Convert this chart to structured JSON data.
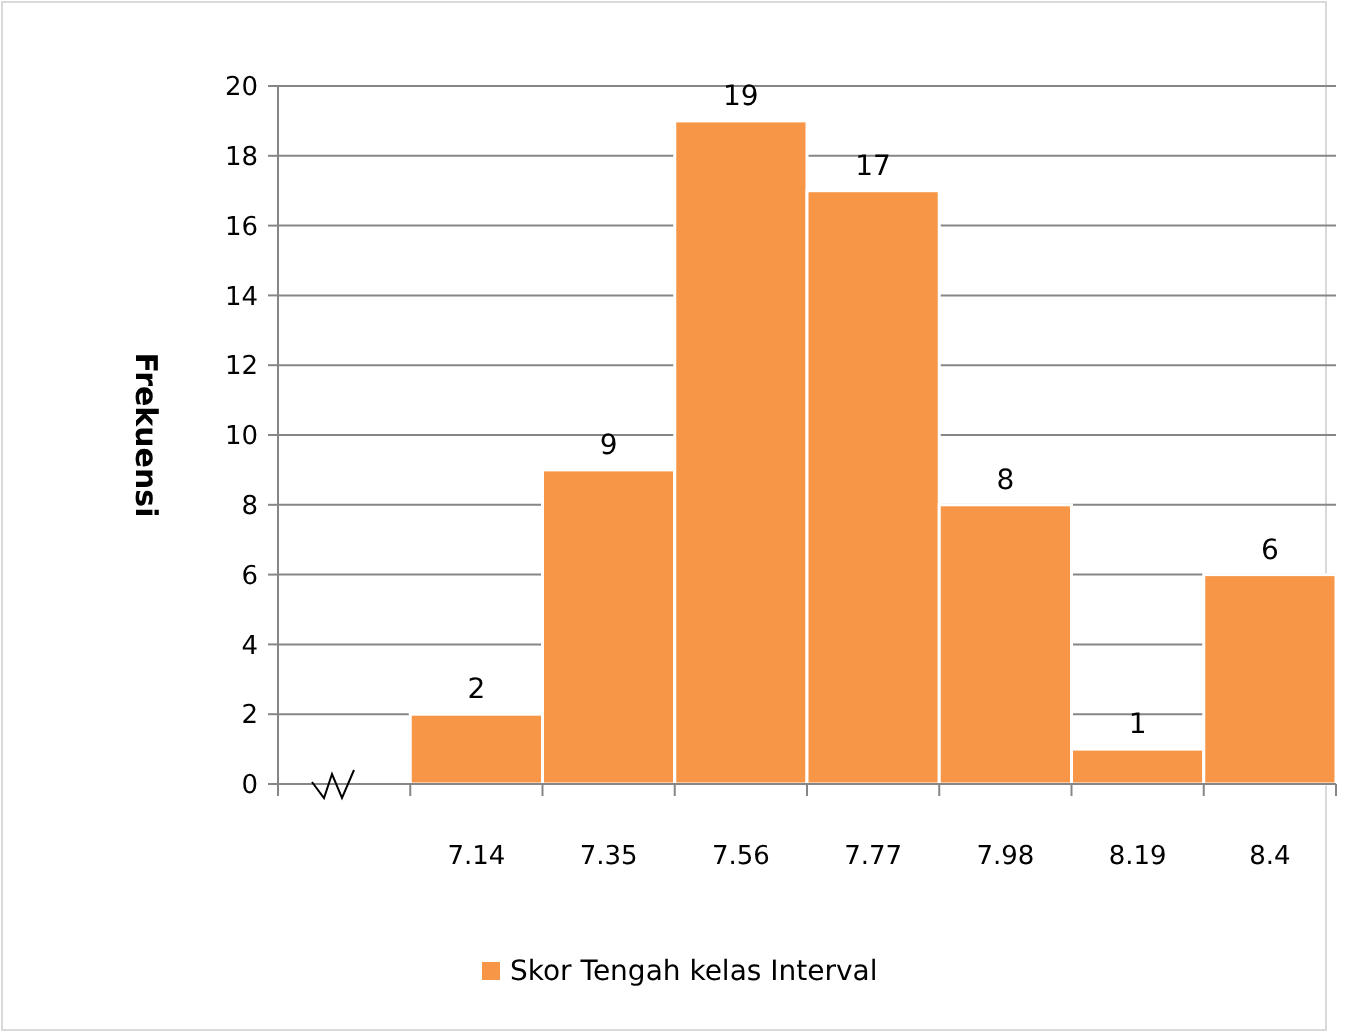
{
  "chart_data": {
    "type": "bar",
    "ylabel": "Frekuensi",
    "categories": [
      null,
      "7.14",
      "7.35",
      "7.56",
      "7.77",
      "7.98",
      "8.19",
      "8.4"
    ],
    "series": [
      {
        "name": "Skor Tengah kelas Interval",
        "color": "#f79646",
        "values": [
          null,
          2,
          9,
          19,
          17,
          8,
          1,
          6
        ]
      }
    ],
    "ylim": [
      0,
      20
    ],
    "yticks": [
      0,
      2,
      4,
      6,
      8,
      10,
      12,
      14,
      16,
      18,
      20
    ],
    "grid": "y",
    "legend": "bottom",
    "data_labels": true
  }
}
